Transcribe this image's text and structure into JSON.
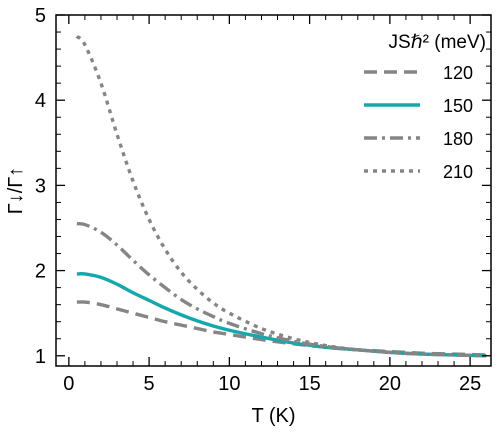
{
  "chart_data": {
    "type": "line",
    "xlabel": "T (K)",
    "ylabel": "Γ↓/Γ↑",
    "xlim": [
      -0.8,
      26.3
    ],
    "ylim": [
      0.88,
      5.0
    ],
    "xticks": [
      "0",
      "5",
      "10",
      "15",
      "20",
      "25"
    ],
    "yticks": [
      "1",
      "2",
      "3",
      "4",
      "5"
    ],
    "grid": false,
    "legend": {
      "title": "JSℏ² (meV)",
      "placement": "top-right"
    },
    "series": [
      {
        "name": "120",
        "style": "dashed",
        "color": "#858585",
        "x": [
          0.5,
          1,
          2,
          3,
          4,
          5,
          6,
          7,
          8,
          9,
          10,
          12,
          14,
          16,
          18,
          20,
          22,
          24,
          26
        ],
        "y": [
          1.63,
          1.63,
          1.6,
          1.55,
          1.5,
          1.45,
          1.4,
          1.36,
          1.32,
          1.28,
          1.25,
          1.19,
          1.14,
          1.1,
          1.07,
          1.05,
          1.03,
          1.02,
          1.01
        ]
      },
      {
        "name": "150",
        "style": "solid",
        "color": "#13a8ab",
        "x": [
          0.5,
          1,
          2,
          3,
          4,
          5,
          6,
          7,
          8,
          9,
          10,
          12,
          14,
          16,
          18,
          20,
          22,
          24,
          26
        ],
        "y": [
          1.96,
          1.96,
          1.92,
          1.84,
          1.74,
          1.65,
          1.56,
          1.48,
          1.41,
          1.35,
          1.3,
          1.22,
          1.15,
          1.1,
          1.07,
          1.04,
          1.02,
          1.01,
          1.0
        ]
      },
      {
        "name": "180",
        "style": "dashdot",
        "color": "#858585",
        "x": [
          0.5,
          1,
          2,
          3,
          4,
          5,
          6,
          7,
          8,
          9,
          10,
          12,
          14,
          16,
          18,
          20,
          22,
          24,
          26
        ],
        "y": [
          2.55,
          2.54,
          2.45,
          2.3,
          2.12,
          1.95,
          1.8,
          1.66,
          1.55,
          1.46,
          1.38,
          1.26,
          1.17,
          1.11,
          1.07,
          1.04,
          1.02,
          1.01,
          1.0
        ]
      },
      {
        "name": "210",
        "style": "dotted",
        "color": "#858585",
        "x": [
          0.5,
          1,
          2,
          3,
          4,
          5,
          6,
          7,
          8,
          9,
          10,
          12,
          14,
          16,
          18,
          20,
          22,
          24,
          26
        ],
        "y": [
          4.75,
          4.65,
          4.2,
          3.6,
          3.05,
          2.6,
          2.25,
          1.98,
          1.78,
          1.62,
          1.5,
          1.32,
          1.2,
          1.12,
          1.07,
          1.04,
          1.02,
          1.01,
          1.0
        ]
      }
    ]
  }
}
